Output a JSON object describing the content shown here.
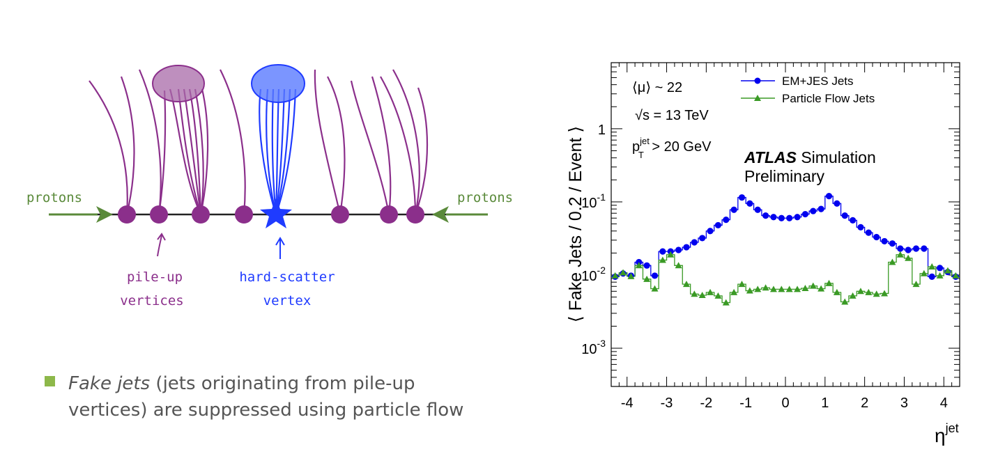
{
  "diagram": {
    "labels": {
      "protons_left": "protons",
      "protons_right": "protons",
      "pileup_line1": "pile-up",
      "pileup_line2": "vertices",
      "hardscatter_line1": "hard-scatter",
      "hardscatter_line2": "vertex"
    },
    "colors": {
      "pileup": "#8b2f8b",
      "hardscatter": "#1f3bff",
      "protons": "#5a8a3a",
      "beamline": "#222222"
    }
  },
  "bullet": {
    "marker_color": "#8db84a",
    "emphasis": "Fake jets",
    "text_after": " (jets originating from pile-up",
    "line2": "vertices) are suppressed using particle flow"
  },
  "chart_data": {
    "type": "step-line",
    "ylabel": "⟨ Fake Jets / 0.2 / Event ⟩",
    "xlabel_base": "η",
    "xlabel_sup": "jet",
    "xlim": [
      -4.4,
      4.4
    ],
    "ylim": [
      0.0003,
      8
    ],
    "yscale": "log",
    "x_ticks": [
      -4,
      -3,
      -2,
      -1,
      0,
      1,
      2,
      3,
      4
    ],
    "y_ticks": [
      {
        "value": 1,
        "base": "1",
        "exp": ""
      },
      {
        "value": 0.1,
        "base": "10",
        "exp": "-1"
      },
      {
        "value": 0.01,
        "base": "10",
        "exp": "-2"
      },
      {
        "value": 0.001,
        "base": "10",
        "exp": "-3"
      }
    ],
    "annotations": {
      "mu": "⟨μ⟩ ~ 22",
      "sqrts_root": "√s",
      "sqrts_rest": " = 13 TeV",
      "pt_base": "p",
      "pt_sup": "jet",
      "pt_sub": "T",
      "pt_rest": " > 20 GeV",
      "atlas": "ATLAS",
      "simulation": " Simulation",
      "preliminary": "Preliminary"
    },
    "bin_width": 0.2,
    "x": [
      -4.3,
      -4.1,
      -3.9,
      -3.7,
      -3.5,
      -3.3,
      -3.1,
      -2.9,
      -2.7,
      -2.5,
      -2.3,
      -2.1,
      -1.9,
      -1.7,
      -1.5,
      -1.3,
      -1.1,
      -0.9,
      -0.7,
      -0.5,
      -0.3,
      -0.1,
      0.1,
      0.3,
      0.5,
      0.7,
      0.9,
      1.1,
      1.3,
      1.5,
      1.7,
      1.9,
      2.1,
      2.3,
      2.5,
      2.7,
      2.9,
      3.1,
      3.3,
      3.5,
      3.7,
      3.9,
      4.1,
      4.3
    ],
    "series": [
      {
        "name": "EM+JES Jets",
        "color": "#0000ee",
        "marker": "circle",
        "values": [
          0.0095,
          0.0105,
          0.0098,
          0.015,
          0.0135,
          0.0098,
          0.021,
          0.021,
          0.022,
          0.024,
          0.028,
          0.032,
          0.04,
          0.048,
          0.057,
          0.078,
          0.115,
          0.095,
          0.078,
          0.065,
          0.062,
          0.06,
          0.06,
          0.062,
          0.068,
          0.075,
          0.08,
          0.12,
          0.095,
          0.065,
          0.056,
          0.045,
          0.038,
          0.033,
          0.029,
          0.027,
          0.023,
          0.022,
          0.023,
          0.023,
          0.0095,
          0.0125,
          0.011,
          0.0095
        ]
      },
      {
        "name": "Particle Flow Jets",
        "color": "#3a9a25",
        "marker": "triangle",
        "values": [
          0.0098,
          0.0108,
          0.0096,
          0.0135,
          0.0088,
          0.0065,
          0.016,
          0.019,
          0.0135,
          0.0075,
          0.0055,
          0.0053,
          0.0058,
          0.0052,
          0.0042,
          0.0058,
          0.0075,
          0.0061,
          0.0064,
          0.0067,
          0.0064,
          0.0064,
          0.0064,
          0.0064,
          0.0066,
          0.0071,
          0.0065,
          0.0077,
          0.0058,
          0.0043,
          0.0052,
          0.006,
          0.0058,
          0.0055,
          0.0056,
          0.015,
          0.019,
          0.017,
          0.0075,
          0.0105,
          0.013,
          0.0098,
          0.0115,
          0.0098
        ]
      }
    ],
    "legend_position": "top-right"
  }
}
